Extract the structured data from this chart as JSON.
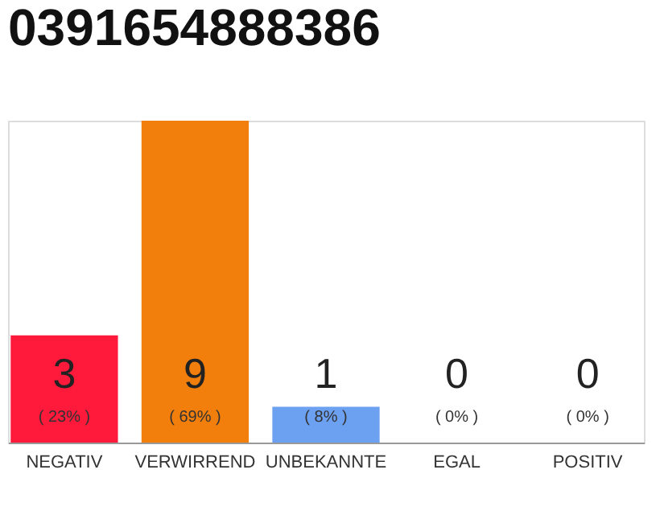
{
  "chart_data": {
    "type": "bar",
    "title": "0391654888386",
    "categories": [
      "NEGATIV",
      "VERWIRREND",
      "UNBEKANNTE",
      "EGAL",
      "POSITIV"
    ],
    "values": [
      3,
      9,
      1,
      0,
      0
    ],
    "colors": [
      "#ff1a3c",
      "#f27f0c",
      "#6ca0f0",
      "#aaaaaa",
      "#aaaaaa"
    ],
    "value_labels": [
      "3",
      "9",
      "1",
      "0",
      "0"
    ],
    "annotations": [
      "( 23% )",
      "( 69% )",
      "( 8% )",
      "( 0% )",
      "( 0% )"
    ]
  }
}
